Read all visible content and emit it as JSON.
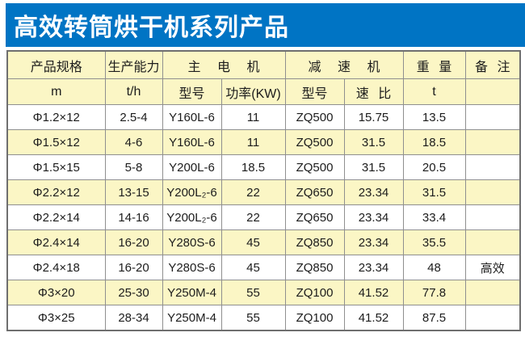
{
  "banner": {
    "title": "高效转筒烘干机系列产品"
  },
  "colors": {
    "banner_blue": "#0074C4",
    "header_yellow": "#FBF6C5",
    "row_alt_yellow": "#FBF6C5",
    "row_white": "#FFFFFF",
    "border_gray": "#8F8F8F",
    "title_text": "#FFFFFF",
    "cell_text": "#1C1C1C"
  },
  "table": {
    "header_row1": [
      {
        "label": "产品规格"
      },
      {
        "label": "生产能力"
      },
      {
        "label": "主 电 机"
      },
      {
        "label": "减 速 机"
      },
      {
        "label": "重 量"
      },
      {
        "label": "备 注"
      }
    ],
    "header_row2": [
      "m",
      "t/h",
      "型号",
      "功率(KW)",
      "型号",
      "速 比",
      "t",
      ""
    ],
    "rows": [
      [
        "Φ1.2×12",
        "2.5-4",
        "Y160L-6",
        "11",
        "ZQ500",
        "15.75",
        "13.5",
        ""
      ],
      [
        "Φ1.5×12",
        "4-6",
        "Y160L-6",
        "11",
        "ZQ500",
        "31.5",
        "18.5",
        ""
      ],
      [
        "Φ1.5×15",
        "5-8",
        "Y200L-6",
        "18.5",
        "ZQ500",
        "31.5",
        "20.5",
        ""
      ],
      [
        "Φ2.2×12",
        "13-15",
        "Y200L₂-6",
        "22",
        "ZQ650",
        "23.34",
        "31.5",
        ""
      ],
      [
        "Φ2.2×14",
        "14-16",
        "Y200L₂-6",
        "22",
        "ZQ650",
        "23.34",
        "33.4",
        ""
      ],
      [
        "Φ2.4×14",
        "16-20",
        "Y280S-6",
        "45",
        "ZQ850",
        "23.34",
        "35.5",
        ""
      ],
      [
        "Φ2.4×18",
        "16-20",
        "Y280S-6",
        "45",
        "ZQ850",
        "23.34",
        "48",
        "高效"
      ],
      [
        "Φ3×20",
        "25-30",
        "Y250M-4",
        "55",
        "ZQ100",
        "41.52",
        "77.8",
        ""
      ],
      [
        "Φ3×25",
        "28-34",
        "Y250M-4",
        "55",
        "ZQ100",
        "41.52",
        "87.5",
        ""
      ]
    ]
  }
}
